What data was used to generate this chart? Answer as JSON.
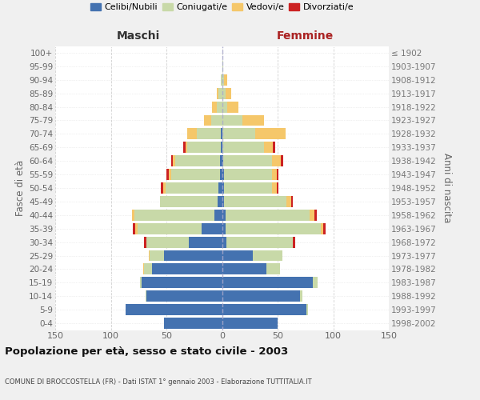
{
  "age_groups": [
    "100+",
    "95-99",
    "90-94",
    "85-89",
    "80-84",
    "75-79",
    "70-74",
    "65-69",
    "60-64",
    "55-59",
    "50-54",
    "45-49",
    "40-44",
    "35-39",
    "30-34",
    "25-29",
    "20-24",
    "15-19",
    "10-14",
    "5-9",
    "0-4"
  ],
  "birth_years": [
    "≤ 1902",
    "1903-1907",
    "1908-1912",
    "1913-1917",
    "1918-1922",
    "1923-1927",
    "1928-1932",
    "1933-1937",
    "1938-1942",
    "1943-1947",
    "1948-1952",
    "1953-1957",
    "1958-1962",
    "1963-1967",
    "1968-1972",
    "1973-1977",
    "1978-1982",
    "1983-1987",
    "1988-1992",
    "1993-1997",
    "1998-2002"
  ],
  "males": {
    "celibe": [
      0,
      0,
      0,
      0,
      0,
      0,
      1,
      1,
      2,
      2,
      3,
      4,
      7,
      18,
      30,
      52,
      63,
      72,
      68,
      87,
      52
    ],
    "coniugato": [
      0,
      0,
      1,
      3,
      5,
      10,
      22,
      30,
      40,
      44,
      48,
      52,
      72,
      58,
      38,
      13,
      7,
      2,
      1,
      0,
      0
    ],
    "vedovo": [
      0,
      0,
      0,
      2,
      4,
      6,
      8,
      2,
      2,
      2,
      2,
      0,
      2,
      2,
      0,
      1,
      1,
      0,
      0,
      0,
      0
    ],
    "divorziato": [
      0,
      0,
      0,
      0,
      0,
      0,
      0,
      2,
      2,
      2,
      2,
      0,
      0,
      2,
      2,
      0,
      0,
      0,
      0,
      0,
      0
    ]
  },
  "females": {
    "nubile": [
      0,
      0,
      0,
      0,
      0,
      0,
      0,
      0,
      1,
      2,
      2,
      2,
      3,
      3,
      4,
      28,
      40,
      82,
      70,
      76,
      50
    ],
    "coniugata": [
      0,
      1,
      2,
      3,
      5,
      18,
      30,
      38,
      44,
      43,
      43,
      56,
      76,
      86,
      60,
      26,
      12,
      4,
      2,
      1,
      0
    ],
    "vedova": [
      0,
      0,
      3,
      5,
      10,
      20,
      27,
      8,
      8,
      4,
      4,
      4,
      4,
      2,
      0,
      0,
      0,
      0,
      0,
      0,
      0
    ],
    "divorziata": [
      0,
      0,
      0,
      0,
      0,
      0,
      0,
      2,
      2,
      2,
      2,
      2,
      2,
      2,
      2,
      0,
      0,
      0,
      0,
      0,
      0
    ]
  },
  "colors": {
    "celibe": "#4472b0",
    "coniugato": "#c8d9a8",
    "vedovo": "#f5c76a",
    "divorziato": "#cc2222"
  },
  "xlim": 150,
  "title": "Popolazione per età, sesso e stato civile - 2003",
  "subtitle": "COMUNE DI BROCCOSTELLA (FR) - Dati ISTAT 1° gennaio 2003 - Elaborazione TUTTITALIA.IT",
  "ylabel_left": "Fasce di età",
  "ylabel_right": "Anni di nascita",
  "header_left": "Maschi",
  "header_right": "Femmine",
  "legend_labels": [
    "Celibi/Nubili",
    "Coniugati/e",
    "Vedovi/e",
    "Divorziati/e"
  ],
  "bg_color": "#f0f0f0",
  "plot_bg_color": "#ffffff",
  "grid_color": "#cccccc"
}
